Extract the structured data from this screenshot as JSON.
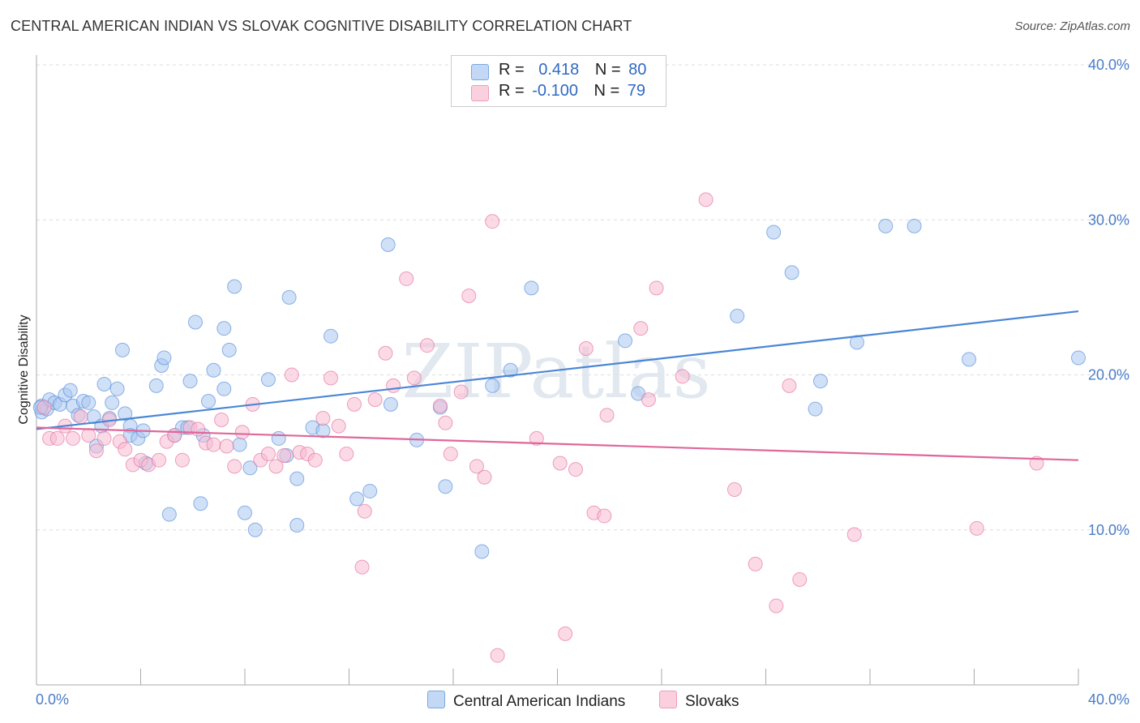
{
  "title": "CENTRAL AMERICAN INDIAN VS SLOVAK COGNITIVE DISABILITY CORRELATION CHART",
  "source": "Source: ZipAtlas.com",
  "watermark": "ZIPatlas",
  "legend": {
    "rows": [
      {
        "r_label": "R =",
        "r_value": "0.418",
        "n_label": "N =",
        "n_value": "80",
        "color": "#8fb6ec"
      },
      {
        "r_label": "R =",
        "r_value": "-0.100",
        "n_label": "N =",
        "n_value": "79",
        "color": "#f4a6c0"
      }
    ]
  },
  "bottom_legend": [
    {
      "label": "Central American Indians",
      "color": "#8fb6ec"
    },
    {
      "label": "Slovaks",
      "color": "#f4a6c0"
    }
  ],
  "chart_data": {
    "type": "scatter",
    "ylabel": "Cognitive Disability",
    "xlim": [
      0,
      40
    ],
    "ylim": [
      0,
      40
    ],
    "x_tick_labels": [
      "0.0%",
      "40.0%"
    ],
    "y_tick_labels": [
      "10.0%",
      "20.0%",
      "30.0%",
      "40.0%"
    ],
    "y_ticks": [
      10,
      20,
      30,
      40
    ],
    "grid": true,
    "series": [
      {
        "name": "Central American Indians",
        "color": "#4a86d6",
        "fill": "#a9c6f0",
        "trend": [
          [
            0,
            16.5
          ],
          [
            40,
            24.1
          ]
        ],
        "points": [
          [
            0.2,
            17.6
          ],
          [
            0.2,
            18.0
          ],
          [
            0.4,
            17.8
          ],
          [
            0.5,
            18.4
          ],
          [
            0.7,
            18.2
          ],
          [
            0.9,
            18.1
          ],
          [
            1.1,
            18.7
          ],
          [
            1.3,
            19.0
          ],
          [
            1.4,
            18.0
          ],
          [
            1.6,
            17.4
          ],
          [
            1.8,
            18.3
          ],
          [
            2.0,
            18.2
          ],
          [
            2.2,
            17.3
          ],
          [
            2.3,
            15.4
          ],
          [
            2.5,
            16.7
          ],
          [
            2.6,
            19.4
          ],
          [
            2.8,
            17.2
          ],
          [
            2.9,
            18.2
          ],
          [
            3.1,
            19.1
          ],
          [
            3.3,
            21.6
          ],
          [
            3.4,
            17.5
          ],
          [
            3.6,
            16.7
          ],
          [
            3.6,
            16.1
          ],
          [
            3.9,
            15.9
          ],
          [
            4.1,
            16.4
          ],
          [
            4.2,
            14.3
          ],
          [
            4.6,
            19.3
          ],
          [
            4.8,
            20.6
          ],
          [
            4.9,
            21.1
          ],
          [
            5.1,
            11.0
          ],
          [
            5.3,
            16.1
          ],
          [
            5.6,
            16.6
          ],
          [
            5.8,
            16.6
          ],
          [
            5.9,
            19.6
          ],
          [
            6.1,
            23.4
          ],
          [
            6.3,
            11.7
          ],
          [
            6.4,
            16.1
          ],
          [
            6.6,
            18.3
          ],
          [
            6.8,
            20.3
          ],
          [
            7.2,
            19.1
          ],
          [
            7.2,
            23.0
          ],
          [
            7.4,
            21.6
          ],
          [
            7.6,
            25.7
          ],
          [
            7.8,
            15.5
          ],
          [
            8.0,
            11.1
          ],
          [
            8.2,
            14.0
          ],
          [
            8.4,
            10.0
          ],
          [
            8.9,
            19.7
          ],
          [
            9.3,
            15.9
          ],
          [
            9.6,
            14.8
          ],
          [
            9.7,
            25.0
          ],
          [
            10.0,
            13.3
          ],
          [
            10.0,
            10.3
          ],
          [
            10.6,
            16.6
          ],
          [
            11.0,
            16.4
          ],
          [
            11.3,
            22.5
          ],
          [
            12.3,
            12.0
          ],
          [
            12.8,
            12.5
          ],
          [
            13.5,
            28.4
          ],
          [
            13.6,
            18.1
          ],
          [
            14.6,
            15.8
          ],
          [
            15.5,
            17.9
          ],
          [
            15.7,
            12.8
          ],
          [
            17.1,
            8.6
          ],
          [
            17.5,
            19.3
          ],
          [
            18.2,
            20.3
          ],
          [
            19.0,
            25.6
          ],
          [
            22.6,
            22.2
          ],
          [
            23.1,
            18.8
          ],
          [
            26.9,
            23.8
          ],
          [
            28.3,
            29.2
          ],
          [
            29.0,
            26.6
          ],
          [
            29.9,
            17.8
          ],
          [
            30.1,
            19.6
          ],
          [
            31.5,
            22.1
          ],
          [
            32.6,
            29.6
          ],
          [
            33.7,
            29.6
          ],
          [
            35.8,
            21.0
          ],
          [
            40.0,
            21.1
          ],
          [
            0.15,
            17.9
          ]
        ]
      },
      {
        "name": "Slovaks",
        "color": "#e0679a",
        "fill": "#f7bcd1",
        "trend": [
          [
            0,
            16.6
          ],
          [
            40,
            14.5
          ]
        ],
        "points": [
          [
            0.3,
            17.9
          ],
          [
            0.5,
            15.9
          ],
          [
            0.8,
            15.9
          ],
          [
            1.1,
            16.7
          ],
          [
            1.4,
            15.9
          ],
          [
            1.7,
            17.3
          ],
          [
            2.0,
            16.1
          ],
          [
            2.3,
            15.1
          ],
          [
            2.6,
            15.9
          ],
          [
            2.8,
            17.1
          ],
          [
            3.2,
            15.7
          ],
          [
            3.4,
            15.2
          ],
          [
            3.7,
            14.2
          ],
          [
            4.0,
            14.5
          ],
          [
            4.3,
            14.2
          ],
          [
            4.7,
            14.5
          ],
          [
            5.0,
            15.7
          ],
          [
            5.3,
            16.1
          ],
          [
            5.6,
            14.5
          ],
          [
            5.9,
            16.6
          ],
          [
            6.2,
            16.5
          ],
          [
            6.5,
            15.6
          ],
          [
            6.8,
            15.5
          ],
          [
            7.1,
            17.1
          ],
          [
            7.3,
            15.4
          ],
          [
            7.6,
            14.1
          ],
          [
            7.9,
            16.3
          ],
          [
            8.3,
            18.1
          ],
          [
            8.6,
            14.5
          ],
          [
            8.9,
            14.9
          ],
          [
            9.2,
            14.1
          ],
          [
            9.5,
            14.8
          ],
          [
            9.8,
            20.0
          ],
          [
            10.1,
            15.0
          ],
          [
            10.4,
            14.9
          ],
          [
            10.7,
            14.5
          ],
          [
            11.0,
            17.2
          ],
          [
            11.3,
            19.8
          ],
          [
            11.6,
            16.7
          ],
          [
            11.9,
            14.9
          ],
          [
            12.2,
            18.1
          ],
          [
            12.6,
            11.2
          ],
          [
            12.5,
            7.6
          ],
          [
            13.0,
            18.4
          ],
          [
            13.4,
            21.4
          ],
          [
            13.7,
            19.3
          ],
          [
            14.2,
            26.2
          ],
          [
            14.5,
            19.8
          ],
          [
            15.0,
            21.9
          ],
          [
            15.5,
            18.0
          ],
          [
            15.7,
            16.9
          ],
          [
            15.9,
            14.9
          ],
          [
            16.3,
            18.9
          ],
          [
            16.6,
            25.1
          ],
          [
            16.9,
            14.1
          ],
          [
            17.2,
            13.4
          ],
          [
            17.5,
            29.9
          ],
          [
            17.7,
            1.9
          ],
          [
            19.2,
            15.9
          ],
          [
            20.1,
            14.3
          ],
          [
            20.3,
            3.3
          ],
          [
            20.7,
            13.9
          ],
          [
            21.1,
            21.7
          ],
          [
            21.4,
            11.1
          ],
          [
            21.9,
            17.4
          ],
          [
            21.8,
            10.9
          ],
          [
            23.2,
            23.0
          ],
          [
            23.5,
            18.4
          ],
          [
            23.8,
            25.6
          ],
          [
            24.8,
            19.9
          ],
          [
            25.7,
            31.3
          ],
          [
            26.8,
            12.6
          ],
          [
            27.6,
            7.8
          ],
          [
            28.4,
            5.1
          ],
          [
            28.9,
            19.3
          ],
          [
            29.3,
            6.8
          ],
          [
            31.4,
            9.7
          ],
          [
            36.1,
            10.1
          ],
          [
            38.4,
            14.3
          ]
        ]
      }
    ]
  }
}
